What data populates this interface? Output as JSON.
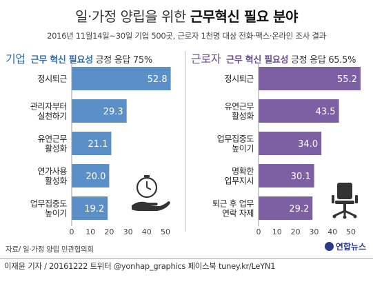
{
  "title_pre": "일·가정 양립을 위한 ",
  "title_highlight": "근무혁신 필요 분야",
  "subtitle": "2016년 11월14일~30일 기업 500곳, 근로자 1천명 대상 전화·팩스·온라인 조사 결과",
  "left_group": "기업",
  "right_group": "근로자",
  "question": "근무 혁신 필요성",
  "left_response": "긍정 응답 75%",
  "right_response": "긍정 응답 65.5%",
  "source": "자료/ 일·가정 양립 민관협의회",
  "footer": "이재윤 기자 / 20161222  트위터 @yonhap_graphics  페이스북 tuney.kr/LeYN1",
  "logo": "연합뉴스",
  "colors": {
    "left_bar": "#5b8fc7",
    "right_bar": "#7d5fa3",
    "bar_label": "#ffffff"
  },
  "icons": [
    "clock-hand-icon",
    "office-chair-icon"
  ],
  "chart_data": [
    {
      "type": "bar",
      "orientation": "horizontal",
      "series_group": "기업",
      "categories": [
        "정시퇴근",
        "관리자부터\n실천하기",
        "유연근무\n활성화",
        "연가사용\n활성화",
        "업무집중도\n높이기"
      ],
      "values": [
        52.8,
        29.3,
        21.1,
        20.0,
        19.2
      ],
      "value_labels": [
        "52.8",
        "29.3",
        "21.1",
        "20.0",
        "19.2"
      ],
      "xlim": [
        0,
        55
      ],
      "ticks": [
        0,
        10,
        20,
        30,
        40,
        50
      ],
      "color": "#5b8fc7"
    },
    {
      "type": "bar",
      "orientation": "horizontal",
      "series_group": "근로자",
      "categories": [
        "정시퇴근",
        "유연근무\n활성화",
        "업무집중도\n높이기",
        "명확한\n업무지시",
        "퇴근 후 업무\n연락 자제"
      ],
      "values": [
        55.2,
        43.5,
        34.0,
        30.1,
        29.2
      ],
      "value_labels": [
        "55.2",
        "43.5",
        "34.0",
        "30.1",
        "29.2"
      ],
      "xlim": [
        0,
        57
      ],
      "ticks": [
        0,
        10,
        20,
        30,
        40,
        50
      ],
      "color": "#7d5fa3"
    }
  ]
}
